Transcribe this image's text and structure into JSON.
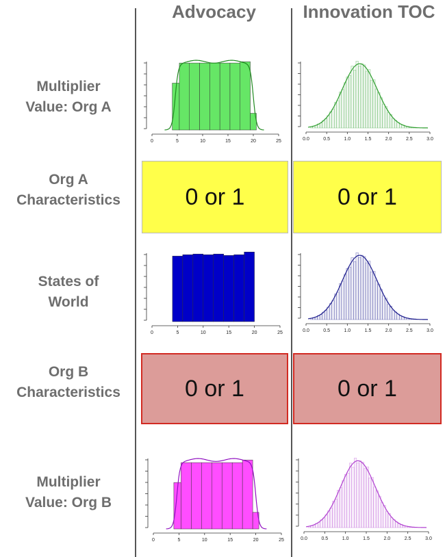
{
  "columns": [
    "Advocacy",
    "Innovation TOC"
  ],
  "rows": [
    {
      "label_lines": [
        "Multiplier",
        "Value: Org A"
      ]
    },
    {
      "label_lines": [
        "Org A",
        "Characteristics"
      ]
    },
    {
      "label_lines": [
        "States of",
        "World"
      ]
    },
    {
      "label_lines": [
        "Org B",
        "Characteristics"
      ]
    },
    {
      "label_lines": [
        "Multiplier",
        "Value: Org B"
      ]
    }
  ],
  "cells": {
    "org_a_advocacy": "0 or 1",
    "org_a_innovation": "0 or 1",
    "org_b_advocacy": "0 or 1",
    "org_b_innovation": "0 or 1"
  },
  "colors": {
    "advocacy_a": "#66e666",
    "advocacy_a_line": "#1f8a1f",
    "states": "#0000c8",
    "advocacy_b": "#ff4dff",
    "advocacy_b_line": "#9010c0",
    "innov_a": "#2e9e2e",
    "innov_states": "#1a1a8c",
    "innov_b": "#b040d0",
    "yellow_box": "#ffff4a",
    "red_box": "#dc9c99"
  },
  "chart_data": [
    {
      "type": "bar",
      "panel": "advocacy-org-a",
      "x_ticks": [
        "0",
        "5",
        "10",
        "15",
        "20",
        "25"
      ],
      "xlim": [
        0,
        25
      ],
      "bin_edges": [
        4,
        5.4,
        7.4,
        9.4,
        11.4,
        13.4,
        15.4,
        17.4,
        19.4,
        20.6
      ],
      "relative_heights": [
        0.7,
        1.0,
        1.0,
        1.0,
        1.0,
        1.0,
        1.0,
        1.02,
        0.25
      ],
      "density_curve": true
    },
    {
      "type": "bar",
      "panel": "innovation-org-a",
      "x_ticks": [
        "0.0",
        "0.5",
        "1.0",
        "1.5",
        "2.0",
        "2.5",
        "3.0"
      ],
      "xlim": [
        0,
        3
      ],
      "distribution": "normal",
      "mean": 1.3,
      "sd": 0.42,
      "density_curve": true
    },
    {
      "type": "bar",
      "panel": "advocacy-states",
      "x_ticks": [
        "0",
        "5",
        "10",
        "15",
        "20",
        "25"
      ],
      "xlim": [
        0,
        25
      ],
      "bin_edges": [
        4,
        6,
        8,
        10,
        12,
        14,
        16,
        18,
        20
      ],
      "relative_heights": [
        0.97,
        0.99,
        1.0,
        0.99,
        1.0,
        0.98,
        0.99,
        1.03
      ],
      "density_curve": false
    },
    {
      "type": "bar",
      "panel": "innovation-states",
      "x_ticks": [
        "0.0",
        "0.5",
        "1.0",
        "1.5",
        "2.0",
        "2.5",
        "3.0"
      ],
      "xlim": [
        0,
        3
      ],
      "distribution": "normal",
      "mean": 1.3,
      "sd": 0.42,
      "density_curve": true
    },
    {
      "type": "bar",
      "panel": "advocacy-org-b",
      "x_ticks": [
        "0",
        "5",
        "10",
        "15",
        "20",
        "25"
      ],
      "xlim": [
        0,
        25
      ],
      "bin_edges": [
        4,
        5.4,
        7.4,
        9.4,
        11.4,
        13.4,
        15.4,
        17.4,
        19.4,
        20.6
      ],
      "relative_heights": [
        0.7,
        1.0,
        1.0,
        1.0,
        1.0,
        1.0,
        1.0,
        1.04,
        0.25
      ],
      "density_curve": true
    },
    {
      "type": "bar",
      "panel": "innovation-org-b",
      "x_ticks": [
        "0.0",
        "0.5",
        "1.0",
        "1.5",
        "2.0",
        "2.5",
        "3.0"
      ],
      "xlim": [
        0,
        3
      ],
      "distribution": "normal",
      "mean": 1.3,
      "sd": 0.42,
      "density_curve": true
    }
  ]
}
